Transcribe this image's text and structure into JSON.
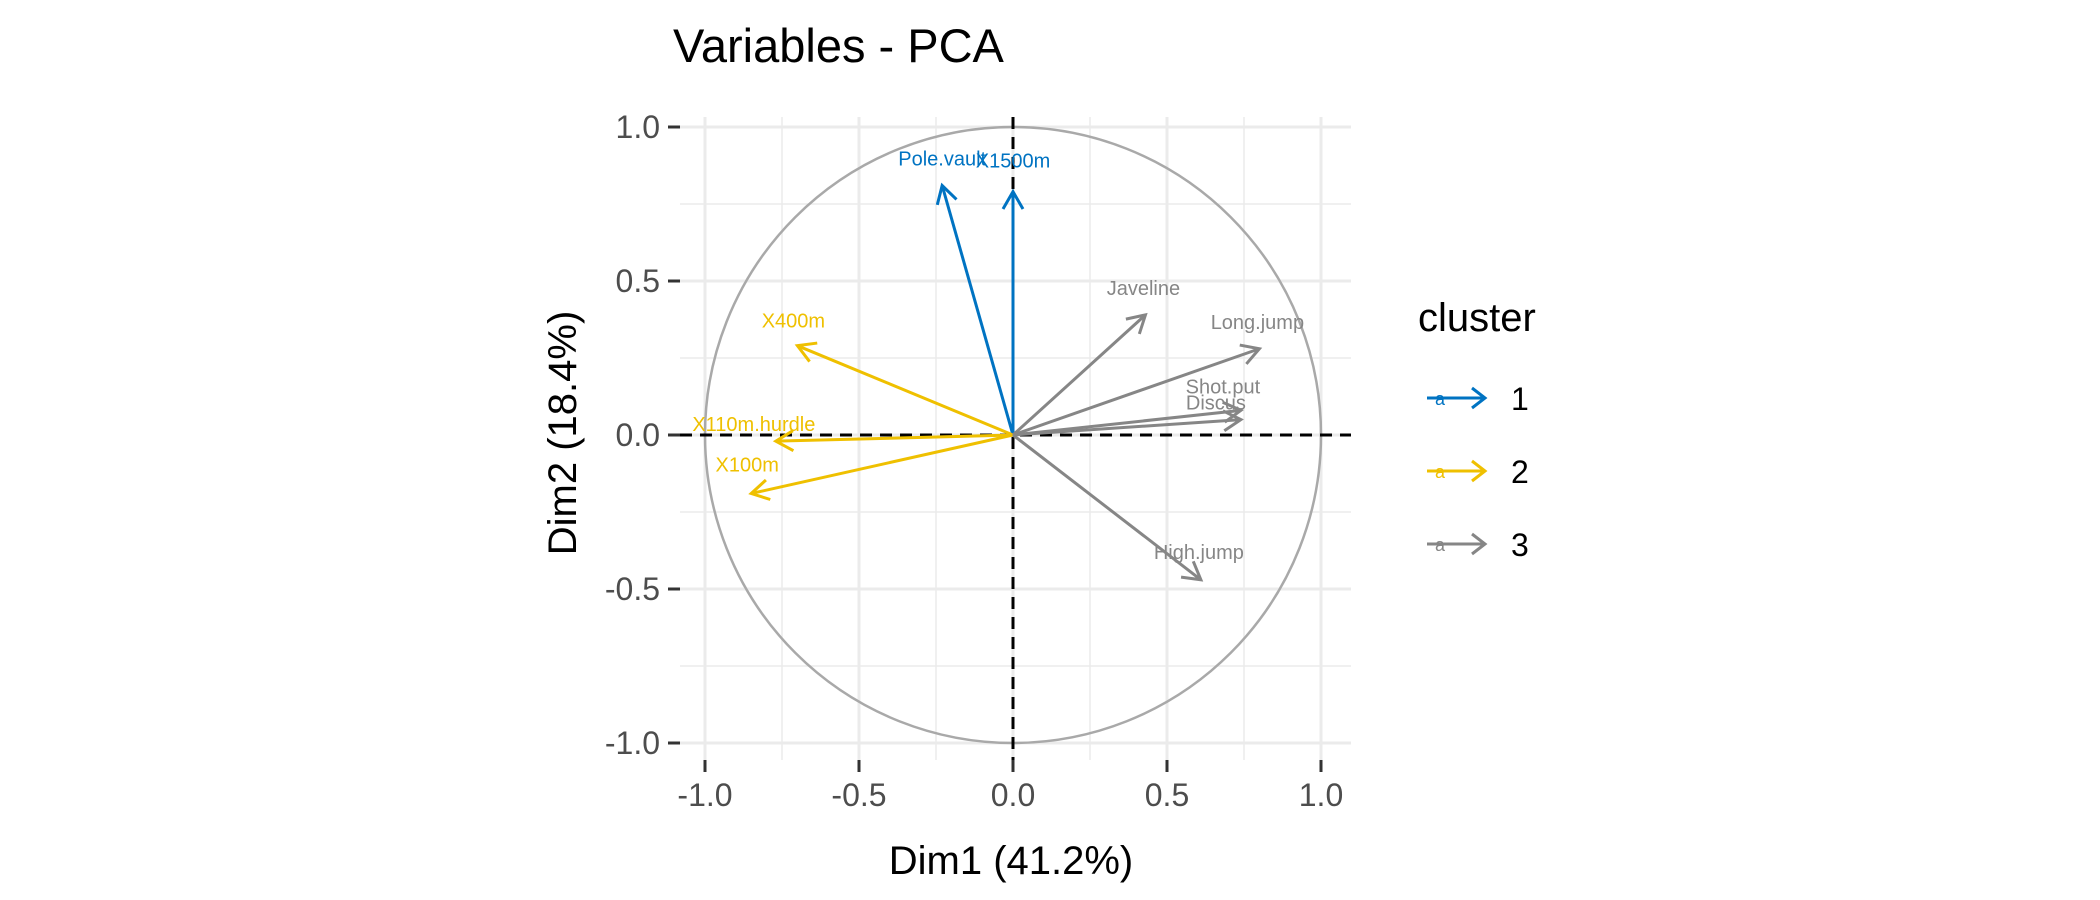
{
  "chart_data": {
    "type": "scatter",
    "subtype": "pca-variable-correlation-circle",
    "title": "Variables - PCA",
    "xlabel": "Dim1 (41.2%)",
    "ylabel": "Dim2 (18.4%)",
    "xlim": [
      -1.0,
      1.0
    ],
    "ylim": [
      -1.0,
      1.0
    ],
    "x_ticks": [
      -1.0,
      -0.5,
      0.0,
      0.5,
      1.0
    ],
    "y_ticks": [
      -1.0,
      -0.5,
      0.0,
      0.5,
      1.0
    ],
    "x_tick_labels": [
      "-1.0",
      "-0.5",
      "0.0",
      "0.5",
      "1.0"
    ],
    "y_tick_labels": [
      "-1.0",
      "-0.5",
      "0.0",
      "0.5",
      "1.0"
    ],
    "grid": true,
    "unit_circle": true,
    "zero_lines": "dashed",
    "legend": {
      "title": "cluster",
      "position": "right",
      "items": [
        {
          "label": "1",
          "color": "#0073C2"
        },
        {
          "label": "2",
          "color": "#EFC000"
        },
        {
          "label": "3",
          "color": "#868686"
        }
      ]
    },
    "variables": [
      {
        "name": "Pole.vault",
        "x": -0.23,
        "y": 0.81,
        "cluster": "1"
      },
      {
        "name": "X1500m",
        "x": 0.0,
        "y": 0.79,
        "cluster": "1"
      },
      {
        "name": "X400m",
        "x": -0.7,
        "y": 0.29,
        "cluster": "2"
      },
      {
        "name": "X110m.hurdle",
        "x": -0.77,
        "y": -0.02,
        "cluster": "2"
      },
      {
        "name": "X100m",
        "x": -0.85,
        "y": -0.19,
        "cluster": "2"
      },
      {
        "name": "Javeline",
        "x": 0.43,
        "y": 0.39,
        "cluster": "3"
      },
      {
        "name": "Long.jump",
        "x": 0.8,
        "y": 0.28,
        "cluster": "3"
      },
      {
        "name": "Shot.put",
        "x": 0.74,
        "y": 0.08,
        "cluster": "3"
      },
      {
        "name": "Discus",
        "x": 0.74,
        "y": 0.05,
        "cluster": "3"
      },
      {
        "name": "High.jump",
        "x": 0.61,
        "y": -0.47,
        "cluster": "3"
      }
    ]
  }
}
